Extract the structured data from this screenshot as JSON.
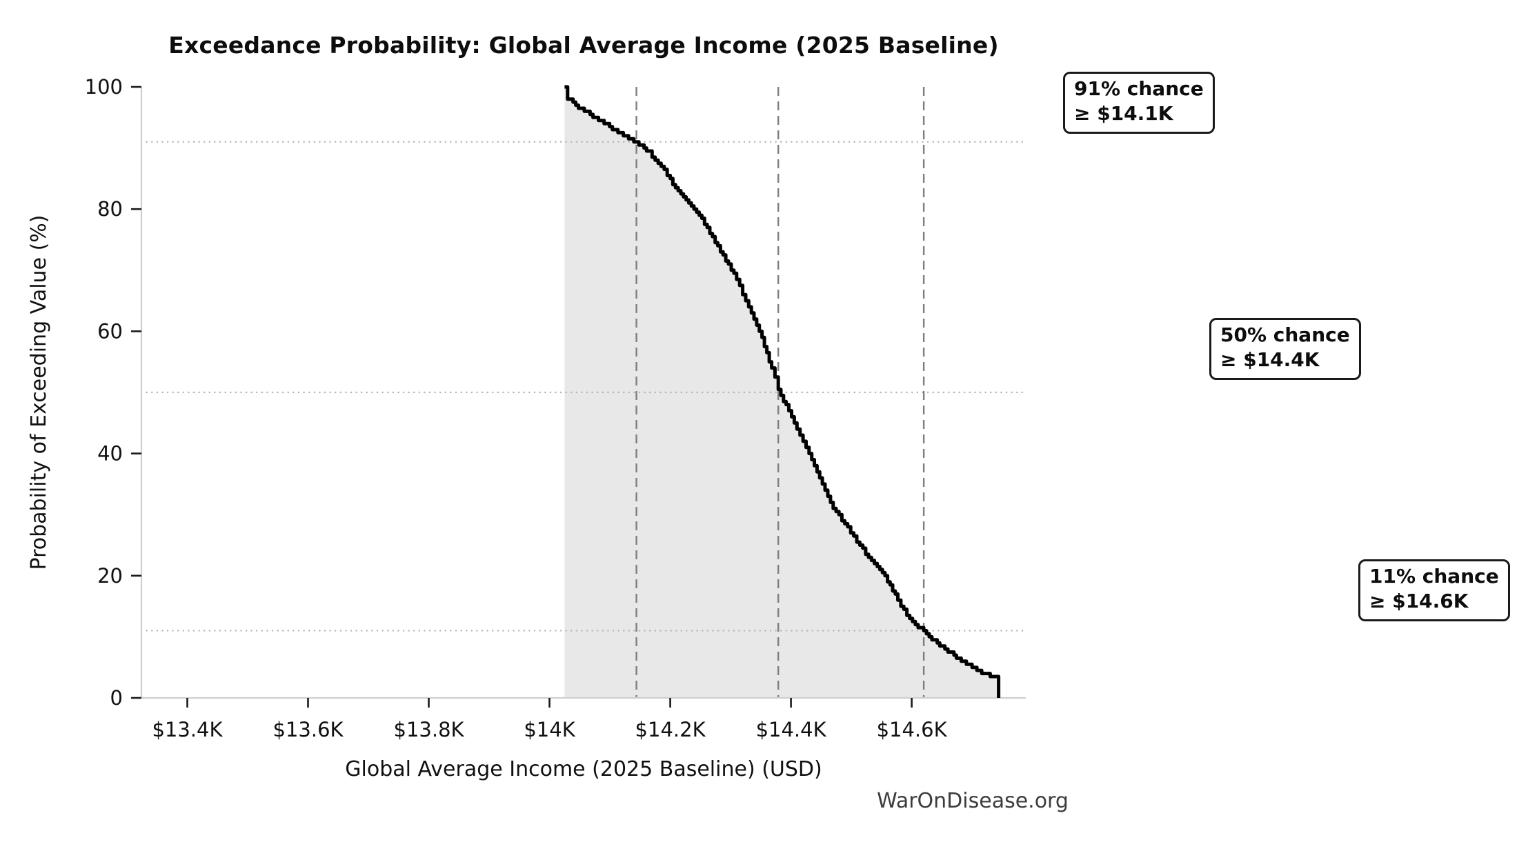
{
  "title": "Exceedance Probability: Global Average Income (2025 Baseline)",
  "watermark": "WarOnDisease.org",
  "chart_data": {
    "type": "line",
    "subtype": "exceedance-probability-survival-curve",
    "title": "Exceedance Probability: Global Average Income (2025 Baseline)",
    "xlabel": "Global Average Income (2025 Baseline) (USD)",
    "ylabel": "Probability of Exceeding Value (%)",
    "x_unit_note": "x values in thousands of USD",
    "xlim": [
      13.324,
      14.789
    ],
    "ylim": [
      0,
      100
    ],
    "grid": "reference lines only",
    "legend_position": "none",
    "x_ticks": [
      {
        "value": 13.4,
        "label": "$13.4K"
      },
      {
        "value": 13.6,
        "label": "$13.6K"
      },
      {
        "value": 13.8,
        "label": "$13.8K"
      },
      {
        "value": 14.0,
        "label": "$14K"
      },
      {
        "value": 14.2,
        "label": "$14.2K"
      },
      {
        "value": 14.4,
        "label": "$14.4K"
      },
      {
        "value": 14.6,
        "label": "$14.6K"
      }
    ],
    "y_ticks": [
      {
        "value": 0,
        "label": "0"
      },
      {
        "value": 20,
        "label": "20"
      },
      {
        "value": 40,
        "label": "40"
      },
      {
        "value": 60,
        "label": "60"
      },
      {
        "value": 80,
        "label": "80"
      },
      {
        "value": 100,
        "label": "100"
      }
    ],
    "series": [
      {
        "name": "exceedance-curve",
        "color": "#000000",
        "line_width": 5,
        "fill_to_zero": true,
        "fill_color": "#e8e8e8",
        "step_quantum_pct": 0.5,
        "x": [
          14.025,
          14.03,
          14.048,
          14.072,
          14.095,
          14.118,
          14.144,
          14.165,
          14.185,
          14.2,
          14.222,
          14.248,
          14.27,
          14.292,
          14.31,
          14.33,
          14.352,
          14.368,
          14.379,
          14.392,
          14.41,
          14.43,
          14.452,
          14.47,
          14.494,
          14.519,
          14.543,
          14.56,
          14.577,
          14.592,
          14.606,
          14.62,
          14.638,
          14.655,
          14.67,
          14.686,
          14.7,
          14.716,
          14.73,
          14.744,
          14.744
        ],
        "y": [
          100,
          98.2,
          96.6,
          95.2,
          93.8,
          92.4,
          91.0,
          89.3,
          87.0,
          84.8,
          82.0,
          79.0,
          75.5,
          71.5,
          68.5,
          63.8,
          58.8,
          54.0,
          50.5,
          47.8,
          44.0,
          39.8,
          35.2,
          31.2,
          27.8,
          24.3,
          21.4,
          19.2,
          16.2,
          13.3,
          12.0,
          10.9,
          9.3,
          8.1,
          7.0,
          5.9,
          5.0,
          4.2,
          3.7,
          3.2,
          0
        ]
      }
    ],
    "reference_lines": {
      "horizontal_dotted_pct": [
        91,
        50,
        11
      ],
      "vertical_dashed_x": [
        14.144,
        14.379,
        14.62
      ],
      "dotted_color": "#b3b3b3",
      "dashed_color": "#7f7f7f"
    },
    "annotations": [
      {
        "line1": "91% chance",
        "line2": "≥ $14.1K",
        "at_probability_pct": 91,
        "at_income_k": 14.1
      },
      {
        "line1": "50% chance",
        "line2": "≥ $14.4K",
        "at_probability_pct": 50,
        "at_income_k": 14.4
      },
      {
        "line1": "11% chance",
        "line2": "≥ $14.6K",
        "at_probability_pct": 11,
        "at_income_k": 14.6
      }
    ],
    "axis_style": {
      "spine_color": "#cfcfcf",
      "tick_color": "#1a1a1a"
    }
  }
}
